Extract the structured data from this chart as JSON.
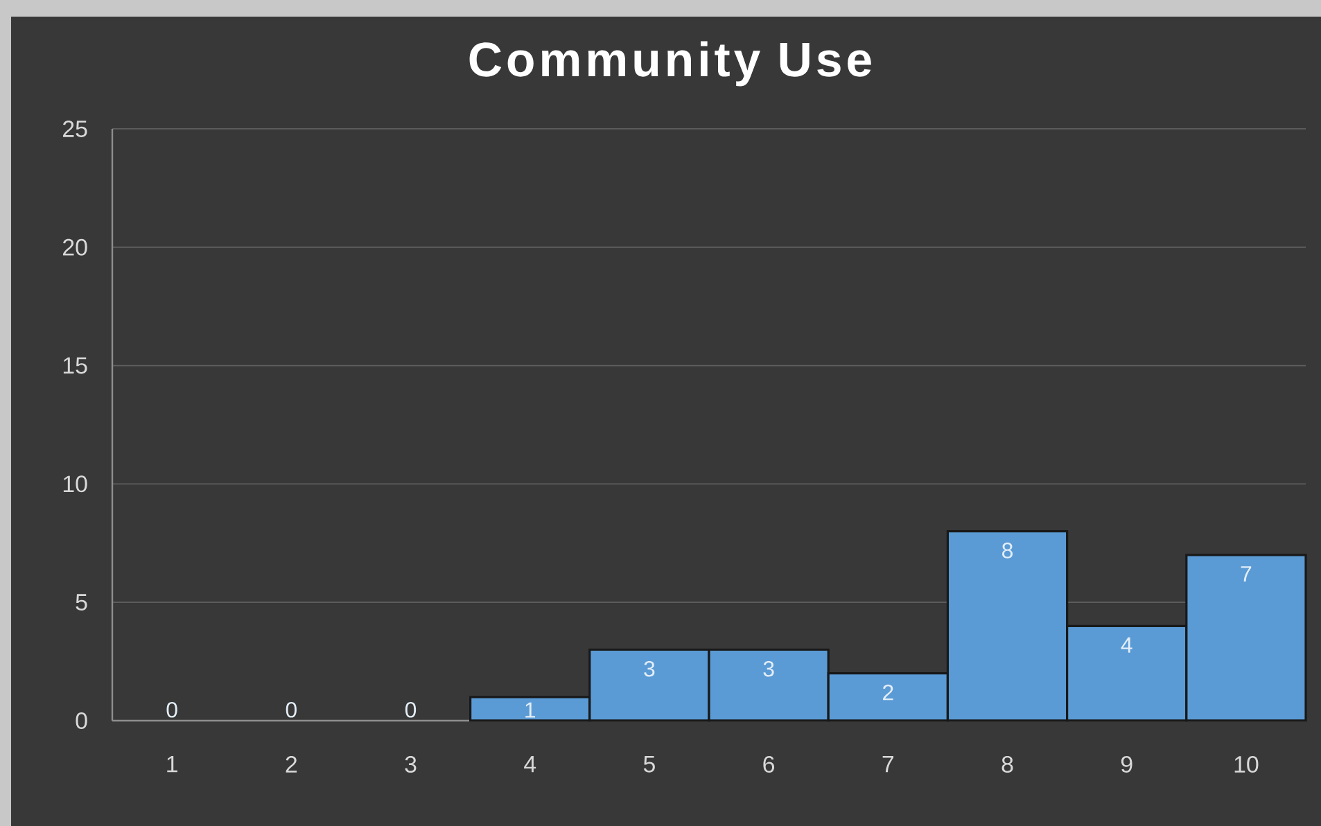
{
  "chart_data": {
    "type": "bar",
    "title": "Community Use",
    "categories": [
      "1",
      "2",
      "3",
      "4",
      "5",
      "6",
      "7",
      "8",
      "9",
      "10"
    ],
    "values": [
      0,
      0,
      0,
      1,
      3,
      3,
      2,
      8,
      4,
      7
    ],
    "color": "#5b9bd5",
    "ylim": [
      0,
      25
    ],
    "yticks": [
      0,
      5,
      10,
      15,
      20,
      25
    ],
    "grid": "y",
    "data_labels": true
  }
}
